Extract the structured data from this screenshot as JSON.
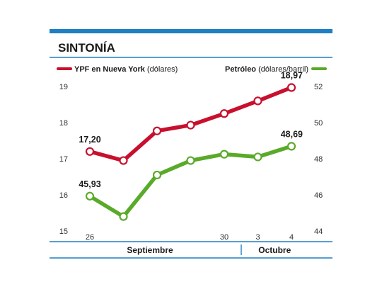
{
  "title": "SINTONÍA",
  "colors": {
    "accent": "#1e7fc4",
    "ypf": "#c8102e",
    "oil": "#5aaa2a"
  },
  "chart_data": {
    "type": "line",
    "x": [
      "26",
      "27",
      "28",
      "29",
      "30",
      "3",
      "4"
    ],
    "x_tick_labels": [
      "26",
      "",
      "",
      "",
      "30",
      "3",
      "4"
    ],
    "groups": [
      {
        "label": "Septiembre",
        "start": 0,
        "end": 4
      },
      {
        "label": "Octubre",
        "start": 5,
        "end": 6
      }
    ],
    "series": [
      {
        "name_bold": "YPF en Nueva York",
        "name_rest": " (dólares)",
        "axis": "left",
        "color": "#c8102e",
        "values": [
          17.2,
          16.95,
          17.77,
          17.93,
          18.25,
          18.6,
          18.97
        ],
        "labels": [
          {
            "index": 0,
            "text": "17,20"
          },
          {
            "index": 6,
            "text": "18,97"
          }
        ]
      },
      {
        "name_bold": "Petróleo",
        "name_rest": " (dólares/barril)",
        "axis": "right",
        "color": "#5aaa2a",
        "values": [
          45.93,
          44.8,
          47.1,
          47.9,
          48.25,
          48.1,
          48.69
        ],
        "labels": [
          {
            "index": 0,
            "text": "45,93"
          },
          {
            "index": 6,
            "text": "48,69"
          }
        ]
      }
    ],
    "y_left": {
      "ylim": [
        15,
        19
      ],
      "ticks": [
        "15",
        "16",
        "17",
        "18",
        "19"
      ]
    },
    "y_right": {
      "ylim": [
        44,
        52
      ],
      "ticks": [
        "44",
        "46",
        "48",
        "50",
        "52"
      ]
    },
    "grid": false,
    "legend": "top"
  }
}
